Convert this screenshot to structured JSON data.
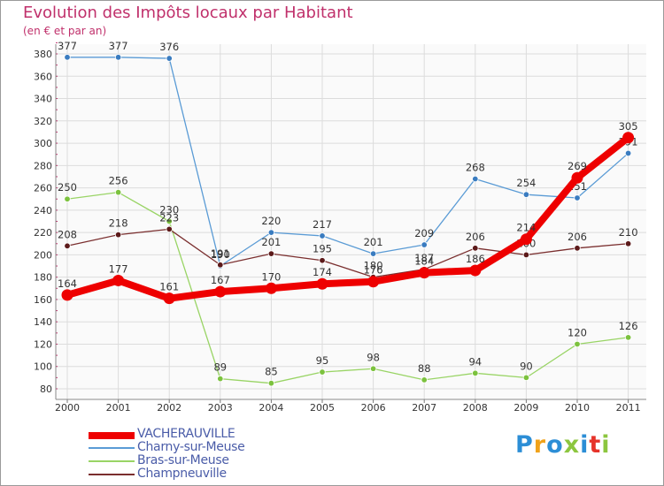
{
  "title": "Evolution des Impôts locaux par Habitant",
  "subtitle": "(en € et par an)",
  "brand": {
    "text": "Proxiti",
    "colors": [
      "#2c8ed6",
      "#f0a21a",
      "#2c8ed6",
      "#8cc63f",
      "#2c8ed6",
      "#e6332a",
      "#8cc63f"
    ]
  },
  "chart_data": {
    "type": "line",
    "title": "Evolution des Impôts locaux par Habitant",
    "subtitle": "(en € et par an)",
    "x": [
      "2000",
      "2001",
      "2002",
      "2003",
      "2004",
      "2005",
      "2006",
      "2007",
      "2008",
      "2009",
      "2010",
      "2011"
    ],
    "ylim": [
      80,
      390
    ],
    "yticks": [
      80,
      100,
      120,
      140,
      160,
      180,
      200,
      220,
      240,
      260,
      280,
      300,
      320,
      340,
      360,
      380
    ],
    "grid": true,
    "legend_position": "bottom-left",
    "series": [
      {
        "name": "Charny-sur-Meuse",
        "color": "#5a9bd5",
        "marker": "#3a7cc0",
        "values": [
          377,
          377,
          376,
          190,
          220,
          217,
          201,
          209,
          268,
          254,
          251,
          291
        ],
        "labels": [
          "377",
          "377",
          "376",
          "190",
          "220",
          "217",
          "201",
          "209",
          "268",
          "254",
          "251",
          "291"
        ]
      },
      {
        "name": "Bras-sur-Meuse",
        "color": "#99d465",
        "marker": "#7cc23e",
        "values": [
          250,
          256,
          230,
          89,
          85,
          95,
          98,
          88,
          94,
          90,
          120,
          126
        ],
        "labels": [
          "250",
          "256",
          "230",
          "89",
          "85",
          "95",
          "98",
          "88",
          "94",
          "90",
          "120",
          "126"
        ]
      },
      {
        "name": "Champneuville",
        "color": "#7a2e2e",
        "marker": "#5c1a1a",
        "values": [
          208,
          218,
          223,
          191,
          201,
          195,
          180,
          187,
          206,
          200,
          206,
          210
        ],
        "labels": [
          "208",
          "218",
          "223",
          "191",
          "201",
          "195",
          "180",
          "187",
          "206",
          "200",
          "206",
          "210"
        ]
      },
      {
        "name": "VACHERAUVILLE",
        "color": "#ee0000",
        "marker": "#ee0000",
        "bold": true,
        "values": [
          164,
          177,
          161,
          167,
          170,
          174,
          176,
          184,
          186,
          214,
          269,
          305
        ],
        "labels": [
          "164",
          "177",
          "161",
          "167",
          "170",
          "174",
          "176",
          "184",
          "186",
          "214",
          "269",
          "305"
        ]
      }
    ],
    "legend_order": [
      "VACHERAUVILLE",
      "Charny-sur-Meuse",
      "Bras-sur-Meuse",
      "Champneuville"
    ]
  }
}
